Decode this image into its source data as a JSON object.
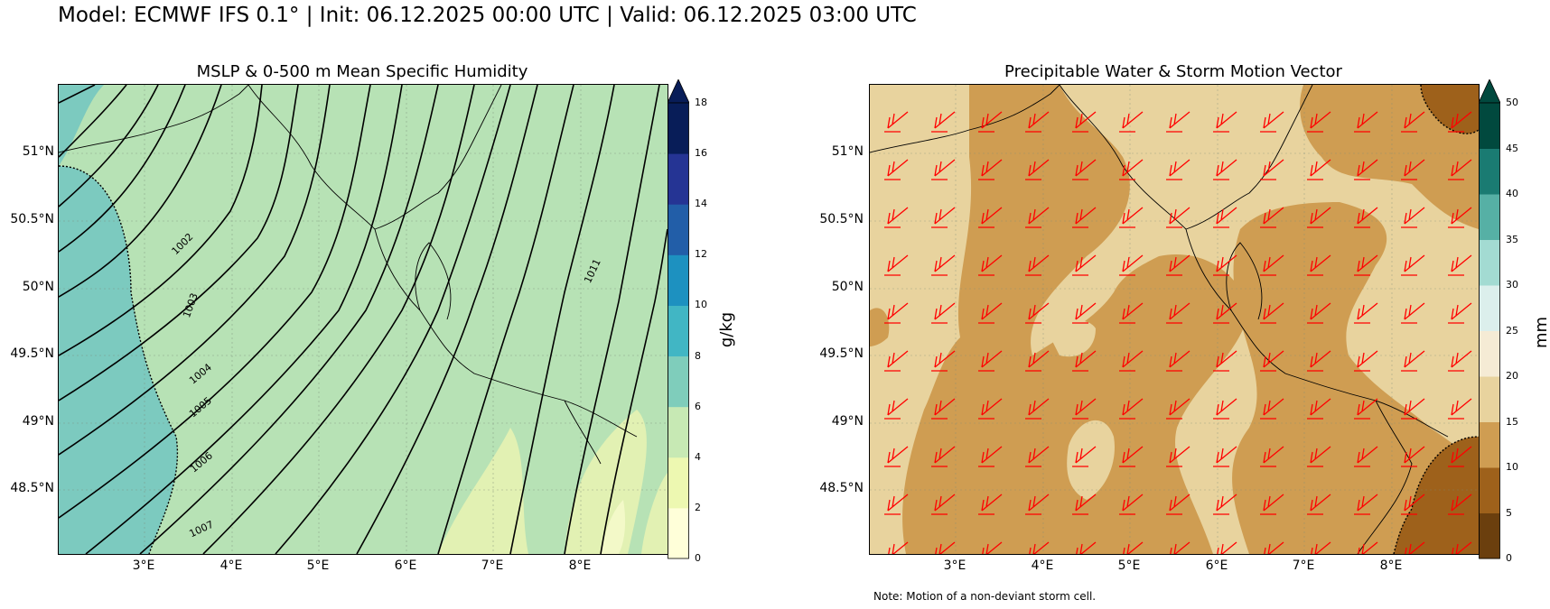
{
  "suptitle": "Model: ECMWF IFS 0.1° | Init: 06.12.2025 00:00 UTC | Valid: 06.12.2025 03:00 UTC",
  "panels": {
    "left": {
      "title": "MSLP & 0-500 m Mean Specific Humidity",
      "colorbar_unit": "g/kg",
      "colorbar_ticks": [
        "0",
        "2",
        "4",
        "6",
        "8",
        "10",
        "12",
        "14",
        "16",
        "18"
      ],
      "colorbar_colors": [
        "#ffffd9",
        "#edf8b1",
        "#c7e9b4",
        "#7fcdbb",
        "#41b6c4",
        "#1d91c0",
        "#225ea8",
        "#253494",
        "#081d58"
      ],
      "isobar_labels": [
        "1002",
        "1003",
        "1004",
        "1005",
        "1006",
        "1007",
        "1011"
      ],
      "fill_colors": {
        "base": "#b7e2b5",
        "moist": "#7ccabf",
        "dry": "#e2f1b3",
        "verydry": "#f3f9c8"
      }
    },
    "right": {
      "title": "Precipitable Water & Storm Motion Vector",
      "colorbar_unit": "mm",
      "colorbar_ticks": [
        "0",
        "5",
        "10",
        "15",
        "20",
        "25",
        "30",
        "35",
        "40",
        "45",
        "50"
      ],
      "colorbar_colors": [
        "#6b3f0e",
        "#9e611b",
        "#cf9d52",
        "#e8d39e",
        "#f5ebd5",
        "#dcefec",
        "#a3dbd2",
        "#56b0a5",
        "#1a7b72",
        "#01493e"
      ],
      "fill_colors": {
        "base": "#e8d39e",
        "band": "#cf9d52",
        "dark": "#9e611b"
      },
      "barb_color": "#ff0000",
      "note": "Note: Motion of a non-deviant storm cell."
    },
    "lat_labels": [
      "51°N",
      "50.5°N",
      "50°N",
      "49.5°N",
      "49°N",
      "48.5°N"
    ],
    "lon_labels": [
      "3°E",
      "4°E",
      "5°E",
      "6°E",
      "7°E",
      "8°E"
    ]
  }
}
